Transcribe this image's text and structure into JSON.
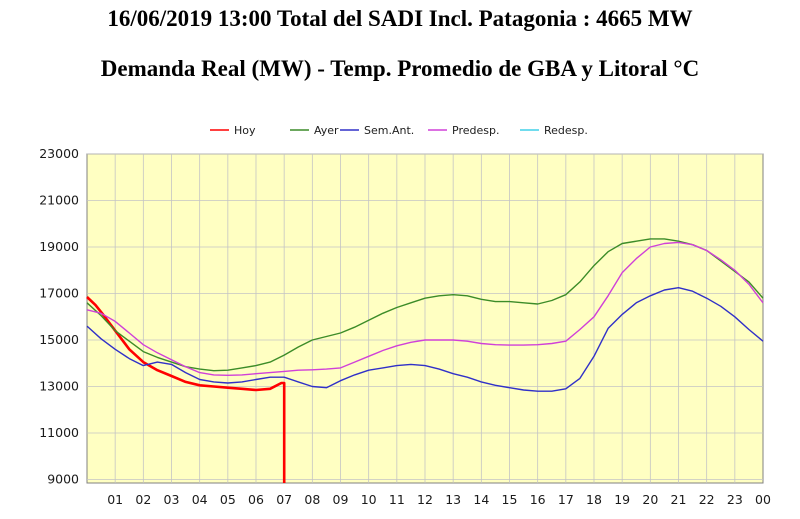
{
  "header": {
    "line1": "16/06/2019 13:00 Total del SADI Incl. Patagonia : 4665 MW",
    "line2": "Demanda Real (MW) - Temp. Promedio de GBA y Litoral °C"
  },
  "chart_data": {
    "type": "line",
    "title": "Demanda Real (MW) - Temp. Promedio de GBA y Litoral °C",
    "xlabel": "",
    "ylabel": "",
    "x_ticks": [
      "01",
      "02",
      "03",
      "04",
      "05",
      "06",
      "07",
      "08",
      "09",
      "10",
      "11",
      "12",
      "13",
      "14",
      "15",
      "16",
      "17",
      "18",
      "19",
      "20",
      "21",
      "22",
      "23",
      "00"
    ],
    "y_ticks": [
      23000,
      21000,
      19000,
      17000,
      15000,
      13000,
      11000,
      9000
    ],
    "xlim": [
      0,
      24
    ],
    "ylim": [
      8850,
      23000
    ],
    "grid": true,
    "legend_position": "top",
    "background_color": "#ffffc2",
    "series": [
      {
        "name": "Hoy",
        "color": "#ff0000",
        "points": [
          [
            0,
            16850
          ],
          [
            0.3,
            16500
          ],
          [
            0.6,
            16050
          ],
          [
            1,
            15400
          ],
          [
            1.5,
            14600
          ],
          [
            2,
            14050
          ],
          [
            2.5,
            13700
          ],
          [
            3,
            13450
          ],
          [
            3.5,
            13200
          ],
          [
            4,
            13050
          ],
          [
            4.5,
            13000
          ],
          [
            5,
            12950
          ],
          [
            5.5,
            12900
          ],
          [
            6,
            12850
          ],
          [
            6.5,
            12900
          ],
          [
            6.9,
            13150
          ],
          [
            7.0,
            13150
          ],
          [
            7.0,
            8850
          ]
        ]
      },
      {
        "name": "Ayer",
        "color": "#3c8c28",
        "points": [
          [
            0,
            16600
          ],
          [
            0.5,
            16050
          ],
          [
            1,
            15400
          ],
          [
            1.5,
            14950
          ],
          [
            2,
            14500
          ],
          [
            2.5,
            14250
          ],
          [
            3,
            14050
          ],
          [
            3.5,
            13850
          ],
          [
            4,
            13750
          ],
          [
            4.5,
            13680
          ],
          [
            5,
            13700
          ],
          [
            5.5,
            13800
          ],
          [
            6,
            13900
          ],
          [
            6.5,
            14050
          ],
          [
            7,
            14350
          ],
          [
            7.5,
            14700
          ],
          [
            8,
            15000
          ],
          [
            8.5,
            15150
          ],
          [
            9,
            15300
          ],
          [
            9.5,
            15550
          ],
          [
            10,
            15850
          ],
          [
            10.5,
            16150
          ],
          [
            11,
            16400
          ],
          [
            11.5,
            16600
          ],
          [
            12,
            16800
          ],
          [
            12.5,
            16900
          ],
          [
            13,
            16950
          ],
          [
            13.5,
            16900
          ],
          [
            14,
            16750
          ],
          [
            14.5,
            16650
          ],
          [
            15,
            16650
          ],
          [
            15.5,
            16600
          ],
          [
            16,
            16550
          ],
          [
            16.5,
            16700
          ],
          [
            17,
            16950
          ],
          [
            17.5,
            17500
          ],
          [
            18,
            18200
          ],
          [
            18.5,
            18800
          ],
          [
            19,
            19150
          ],
          [
            19.5,
            19250
          ],
          [
            20,
            19350
          ],
          [
            20.5,
            19350
          ],
          [
            21,
            19250
          ],
          [
            21.5,
            19100
          ],
          [
            22,
            18850
          ],
          [
            22.5,
            18400
          ],
          [
            23,
            17950
          ],
          [
            23.5,
            17500
          ],
          [
            24,
            16800
          ]
        ]
      },
      {
        "name": "Sem.Ant.",
        "color": "#3030c8",
        "points": [
          [
            0,
            15600
          ],
          [
            0.5,
            15050
          ],
          [
            1,
            14600
          ],
          [
            1.5,
            14200
          ],
          [
            2,
            13900
          ],
          [
            2.5,
            14050
          ],
          [
            3,
            13950
          ],
          [
            3.5,
            13600
          ],
          [
            4,
            13300
          ],
          [
            4.5,
            13200
          ],
          [
            5,
            13150
          ],
          [
            5.5,
            13200
          ],
          [
            6,
            13300
          ],
          [
            6.5,
            13400
          ],
          [
            7,
            13400
          ],
          [
            7.5,
            13200
          ],
          [
            8,
            13000
          ],
          [
            8.5,
            12950
          ],
          [
            9,
            13250
          ],
          [
            9.5,
            13500
          ],
          [
            10,
            13700
          ],
          [
            10.5,
            13800
          ],
          [
            11,
            13900
          ],
          [
            11.5,
            13950
          ],
          [
            12,
            13900
          ],
          [
            12.5,
            13750
          ],
          [
            13,
            13550
          ],
          [
            13.5,
            13400
          ],
          [
            14,
            13200
          ],
          [
            14.5,
            13050
          ],
          [
            15,
            12950
          ],
          [
            15.5,
            12850
          ],
          [
            16,
            12800
          ],
          [
            16.5,
            12800
          ],
          [
            17,
            12900
          ],
          [
            17.5,
            13350
          ],
          [
            18,
            14300
          ],
          [
            18.5,
            15500
          ],
          [
            19,
            16100
          ],
          [
            19.5,
            16600
          ],
          [
            20,
            16900
          ],
          [
            20.5,
            17150
          ],
          [
            21,
            17250
          ],
          [
            21.5,
            17100
          ],
          [
            22,
            16800
          ],
          [
            22.5,
            16450
          ],
          [
            23,
            16000
          ],
          [
            23.5,
            15450
          ],
          [
            24,
            14950
          ]
        ]
      },
      {
        "name": "Predesp.",
        "color": "#d040d8",
        "points": [
          [
            0,
            16300
          ],
          [
            0.5,
            16150
          ],
          [
            1,
            15800
          ],
          [
            1.5,
            15300
          ],
          [
            2,
            14800
          ],
          [
            2.5,
            14450
          ],
          [
            3,
            14150
          ],
          [
            3.5,
            13850
          ],
          [
            4,
            13600
          ],
          [
            4.5,
            13500
          ],
          [
            5,
            13480
          ],
          [
            5.5,
            13500
          ],
          [
            6,
            13550
          ],
          [
            6.5,
            13600
          ],
          [
            7,
            13650
          ],
          [
            7.5,
            13700
          ],
          [
            8,
            13720
          ],
          [
            8.5,
            13750
          ],
          [
            9,
            13800
          ],
          [
            9.5,
            14050
          ],
          [
            10,
            14300
          ],
          [
            10.5,
            14550
          ],
          [
            11,
            14750
          ],
          [
            11.5,
            14900
          ],
          [
            12,
            15000
          ],
          [
            12.5,
            15000
          ],
          [
            13,
            15000
          ],
          [
            13.5,
            14950
          ],
          [
            14,
            14850
          ],
          [
            14.5,
            14800
          ],
          [
            15,
            14780
          ],
          [
            15.5,
            14780
          ],
          [
            16,
            14800
          ],
          [
            16.5,
            14850
          ],
          [
            17,
            14950
          ],
          [
            17.5,
            15450
          ],
          [
            18,
            16000
          ],
          [
            18.5,
            16900
          ],
          [
            19,
            17900
          ],
          [
            19.5,
            18500
          ],
          [
            20,
            19000
          ],
          [
            20.5,
            19150
          ],
          [
            21,
            19200
          ],
          [
            21.5,
            19100
          ],
          [
            22,
            18850
          ],
          [
            22.5,
            18450
          ],
          [
            23,
            18000
          ],
          [
            23.5,
            17400
          ],
          [
            24,
            16600
          ]
        ]
      },
      {
        "name": "Redesp.",
        "color": "#40d0e8",
        "points": []
      }
    ]
  }
}
